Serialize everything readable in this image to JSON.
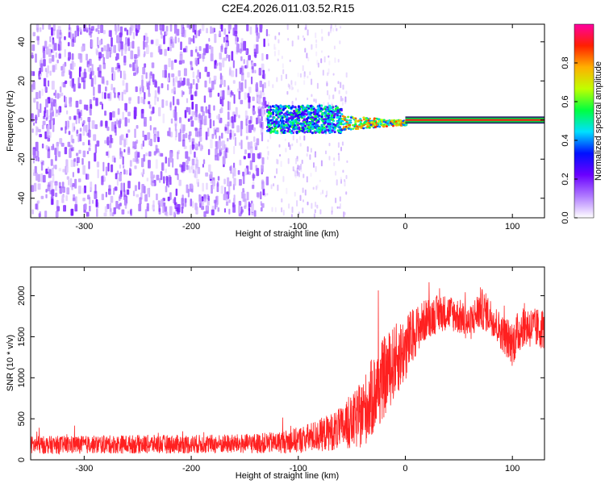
{
  "title": "C2E4.2026.011.03.52.R15",
  "chart_data": [
    {
      "type": "heatmap",
      "xlabel": "Height of straight line (km)",
      "ylabel": "Frequency (Hz)",
      "xlim": [
        -350,
        130
      ],
      "ylim": [
        -50,
        49
      ],
      "xticks": [
        -300,
        -200,
        -100,
        0,
        100
      ],
      "yticks": [
        -40,
        -20,
        0,
        20,
        40
      ],
      "xtick_labels": [
        "-300",
        "-200",
        "-100",
        "0",
        "100"
      ],
      "ytick_labels": [
        "-40",
        "-20",
        "0",
        "20",
        "40"
      ],
      "colorbar": {
        "label": "Normalized spectral amplitude",
        "range": [
          0,
          1
        ],
        "ticks": [
          0,
          0.2,
          0.4,
          0.6,
          0.8
        ],
        "tick_labels": [
          "0.0",
          "0.2",
          "0.4",
          "0.6",
          "0.8"
        ],
        "colors": [
          "#ffffff",
          "#b07bff",
          "#6a00ff",
          "#0010ff",
          "#00e0ff",
          "#00ff40",
          "#c0ff00",
          "#ffb000",
          "#ff2000",
          "#ff00a0"
        ]
      },
      "regions": [
        {
          "name": "broadband noise",
          "x": [
            -350,
            -130
          ],
          "y": [
            -50,
            49
          ],
          "amplitude": 0.12
        },
        {
          "name": "sparse noise",
          "x": [
            -130,
            -55
          ],
          "y": [
            -50,
            49
          ],
          "amplitude": 0.05
        },
        {
          "name": "signal spread",
          "x": [
            -130,
            -60
          ],
          "y": [
            -6,
            8
          ],
          "amplitude": 0.35
        },
        {
          "name": "signal converging",
          "x": [
            -60,
            0
          ],
          "y": [
            -3,
            3
          ],
          "amplitude": 0.55
        },
        {
          "name": "carrier tone",
          "x": [
            0,
            130
          ],
          "y": [
            -1,
            1
          ],
          "amplitude": 0.9
        }
      ]
    },
    {
      "type": "line",
      "xlabel": "Height of straight line (km)",
      "ylabel": "SNR (10 * v/v)",
      "xlim": [
        -350,
        130
      ],
      "ylim": [
        0,
        2350
      ],
      "xticks": [
        -300,
        -200,
        -100,
        0,
        100
      ],
      "yticks": [
        0,
        500,
        1000,
        1500,
        2000
      ],
      "xtick_labels": [
        "-300",
        "-200",
        "-100",
        "0",
        "100"
      ],
      "ytick_labels": [
        "0",
        "500",
        "1000",
        "1500",
        "2000"
      ],
      "color": "#ff2020",
      "series": [
        {
          "name": "SNR",
          "x": [
            -350,
            -300,
            -250,
            -200,
            -150,
            -120,
            -100,
            -80,
            -60,
            -50,
            -40,
            -30,
            -20,
            -10,
            0,
            10,
            20,
            30,
            40,
            50,
            60,
            70,
            80,
            90,
            100,
            110,
            120,
            130
          ],
          "y": [
            180,
            185,
            190,
            190,
            195,
            210,
            240,
            300,
            380,
            450,
            560,
            780,
            1000,
            1200,
            1350,
            1580,
            1720,
            1780,
            1800,
            1750,
            1650,
            1850,
            1750,
            1550,
            1420,
            1650,
            1600,
            1600
          ],
          "noise": [
            110,
            110,
            115,
            115,
            120,
            130,
            160,
            200,
            260,
            330,
            420,
            500,
            500,
            450,
            420,
            300,
            250,
            230,
            220,
            220,
            210,
            260,
            220,
            220,
            280,
            270,
            250,
            250
          ]
        }
      ]
    }
  ]
}
